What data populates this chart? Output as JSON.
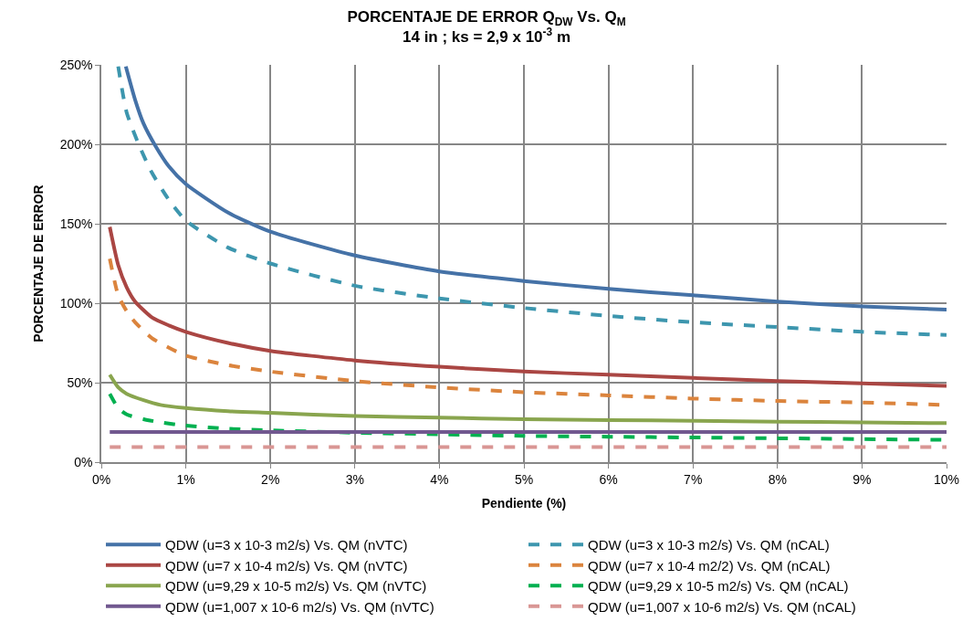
{
  "chart_data": {
    "type": "line",
    "title": "PORCENTAJE DE ERROR Q$_{DW}$ Vs. Q$_{M}$",
    "subtitle": "14 in ; ks = 2,9 x 10$^{-3}$ m",
    "xlabel": "Pendiente (%)",
    "ylabel": "PORCENTAJE DE ERROR",
    "xlim": [
      0,
      10
    ],
    "xticks": [
      {
        "value": 0,
        "label": "0%"
      },
      {
        "value": 1,
        "label": "1%"
      },
      {
        "value": 2,
        "label": "2%"
      },
      {
        "value": 3,
        "label": "3%"
      },
      {
        "value": 4,
        "label": "4%"
      },
      {
        "value": 5,
        "label": "5%"
      },
      {
        "value": 6,
        "label": "6%"
      },
      {
        "value": 7,
        "label": "7%"
      },
      {
        "value": 8,
        "label": "8%"
      },
      {
        "value": 9,
        "label": "9%"
      },
      {
        "value": 10,
        "label": "10%"
      }
    ],
    "ylim": [
      0,
      250
    ],
    "yticks": [
      {
        "value": 0,
        "label": "0%"
      },
      {
        "value": 50,
        "label": "50%"
      },
      {
        "value": 100,
        "label": "100%"
      },
      {
        "value": 150,
        "label": "150%"
      },
      {
        "value": 200,
        "label": "200%"
      },
      {
        "value": 250,
        "label": "250%"
      }
    ],
    "grid": true,
    "legend": "bottom",
    "marker": "none",
    "series": [
      {
        "name": "QDW (u=3 x 10-3 m2/s) Vs. QM (nVTC)",
        "color": "#4572a7",
        "line_style": "solid",
        "x": [
          0.29,
          0.4,
          0.5,
          0.64,
          0.8,
          1,
          1.5,
          2,
          3,
          4,
          5,
          6,
          7,
          8,
          9,
          10
        ],
        "values": [
          249,
          228,
          213,
          199,
          186,
          175,
          157,
          145,
          130,
          120,
          114,
          109,
          105,
          101,
          98,
          96
        ]
      },
      {
        "name": "QDW (u=3 x 10-3 m2/s) Vs. QM (nCAL)",
        "color": "#3d96ae",
        "line_style": "dashed",
        "x": [
          0.2,
          0.3,
          0.45,
          0.6,
          0.8,
          1,
          1.5,
          2,
          3,
          4,
          5,
          6,
          7,
          8,
          9,
          10
        ],
        "values": [
          249,
          220,
          199,
          182,
          165,
          152,
          135,
          125,
          111,
          103,
          97,
          92,
          88,
          85,
          82,
          80
        ]
      },
      {
        "name": "QDW (u=7 x 10-4 m2/s) Vs. QM (nVTC)",
        "color": "#aa4643",
        "line_style": "solid",
        "x": [
          0.1,
          0.2,
          0.3,
          0.4,
          0.6,
          0.8,
          1,
          1.5,
          2,
          3,
          4,
          5,
          6,
          7,
          8,
          9,
          10
        ],
        "values": [
          148,
          124,
          110,
          101,
          91,
          86,
          82,
          75,
          70,
          64,
          60,
          57,
          55,
          53,
          51,
          49.5,
          48
        ]
      },
      {
        "name": "QDW (u=7 x 10-4 m2/2) Vs. QM (nCAL)",
        "color": "#db843d",
        "line_style": "dashed",
        "x": [
          0.1,
          0.2,
          0.3,
          0.4,
          0.6,
          0.8,
          1,
          1.5,
          2,
          3,
          4,
          5,
          6,
          7,
          8,
          9,
          10
        ],
        "values": [
          128,
          105,
          95,
          88,
          78,
          72,
          67,
          61,
          57,
          51,
          47,
          44,
          42,
          40,
          38.5,
          37.5,
          36
        ]
      },
      {
        "name": "QDW (u=9,29 x 10-5 m2/s) Vs. QM (nVTC)",
        "color": "#89a54e",
        "line_style": "solid",
        "x": [
          0.1,
          0.2,
          0.3,
          0.5,
          0.7,
          1,
          1.5,
          2,
          3,
          4,
          5,
          6,
          7,
          8,
          9,
          10
        ],
        "values": [
          55,
          47,
          43,
          39,
          36,
          34,
          32,
          31,
          29,
          28,
          27,
          26.5,
          26,
          25.5,
          25,
          24.5
        ]
      },
      {
        "name": "QDW (u=9,29 x 10-5 m2/s) Vs. QM (nCAL)",
        "color": "#00b050",
        "line_style": "dashed",
        "x": [
          0.1,
          0.2,
          0.3,
          0.5,
          0.7,
          1,
          1.5,
          2,
          3,
          4,
          5,
          6,
          7,
          8,
          9,
          10
        ],
        "values": [
          43,
          34,
          30,
          27,
          25,
          23,
          21,
          20,
          18.5,
          17.5,
          16.5,
          16,
          15.5,
          15,
          14.5,
          14
        ]
      },
      {
        "name": "QDW (u=1,007 x 10-6 m2/s) Vs. QM (nVTC)",
        "color": "#71588f",
        "line_style": "solid",
        "x": [
          0.1,
          10
        ],
        "values": [
          19,
          19
        ]
      },
      {
        "name": "QDW (u=1,007 x 10-6 m2/s) Vs. QM (nCAL)",
        "color": "#d99694",
        "line_style": "dashed",
        "x": [
          0.1,
          10
        ],
        "values": [
          9.5,
          9.5
        ]
      }
    ]
  }
}
